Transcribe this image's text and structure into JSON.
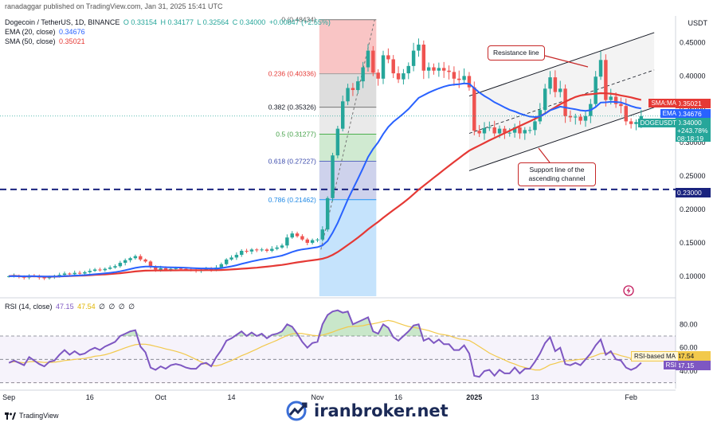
{
  "header": {
    "published_by": "ranadaggar published on TradingView.com, Jan 31, 2025 15:41 UTC",
    "symbol": "Dogecoin / TetherUS, 1D, BINANCE",
    "ohlc": {
      "o": "O 0.33154",
      "h": "H 0.34177",
      "l": "L 0.32564",
      "c": "C 0.34000",
      "chg": "+0.00847 (+2.55%)"
    },
    "ema_label": "EMA (20, close)",
    "ema_value": "0.34676",
    "sma_label": "SMA (50, close)",
    "sma_value": "0.35021",
    "currency": "USDT"
  },
  "colors": {
    "up": "#26a69a",
    "down": "#ef5350",
    "ema": "#2962ff",
    "sma": "#e53935",
    "rsi": "#7e57c2",
    "rsi_ma": "#f2c94c",
    "dash_line": "#1a237e"
  },
  "chart_data": [
    {
      "type": "candlestick",
      "title": "Dogecoin / TetherUS, 1D, BINANCE",
      "ylim": [
        0.07,
        0.49
      ],
      "y_ticks": [
        "0.45000",
        "0.40000",
        "0.35000",
        "0.30000",
        "0.25000",
        "0.20000",
        "0.15000",
        "0.10000"
      ],
      "y_tick_values": [
        0.45,
        0.4,
        0.35,
        0.3,
        0.25,
        0.2,
        0.15,
        0.1
      ],
      "x_ticks": [
        "Sep",
        "16",
        "Oct",
        "14",
        "Nov",
        "16",
        "2025",
        "13",
        "Feb"
      ],
      "x_tick_days": [
        0,
        16,
        30,
        44,
        61,
        77,
        92,
        104,
        123
      ],
      "days": 126,
      "close_prices": [
        0.1,
        0.101,
        0.099,
        0.098,
        0.101,
        0.1,
        0.098,
        0.097,
        0.099,
        0.1,
        0.102,
        0.104,
        0.103,
        0.105,
        0.104,
        0.106,
        0.108,
        0.11,
        0.109,
        0.111,
        0.113,
        0.115,
        0.12,
        0.124,
        0.127,
        0.13,
        0.125,
        0.122,
        0.114,
        0.11,
        0.112,
        0.11,
        0.111,
        0.112,
        0.111,
        0.11,
        0.109,
        0.108,
        0.11,
        0.111,
        0.109,
        0.113,
        0.118,
        0.125,
        0.128,
        0.132,
        0.138,
        0.137,
        0.14,
        0.139,
        0.14,
        0.138,
        0.141,
        0.143,
        0.146,
        0.158,
        0.164,
        0.16,
        0.155,
        0.15,
        0.154,
        0.155,
        0.17,
        0.217,
        0.281,
        0.321,
        0.362,
        0.382,
        0.379,
        0.392,
        0.413,
        0.438,
        0.405,
        0.396,
        0.431,
        0.425,
        0.404,
        0.395,
        0.404,
        0.415,
        0.438,
        0.447,
        0.408,
        0.413,
        0.408,
        0.412,
        0.408,
        0.406,
        0.396,
        0.394,
        0.4,
        0.383,
        0.318,
        0.314,
        0.322,
        0.323,
        0.314,
        0.321,
        0.315,
        0.315,
        0.323,
        0.314,
        0.319,
        0.319,
        0.332,
        0.349,
        0.381,
        0.398,
        0.376,
        0.381,
        0.34,
        0.338,
        0.339,
        0.333,
        0.34,
        0.358,
        0.399,
        0.424,
        0.364,
        0.369,
        0.358,
        0.355,
        0.332,
        0.328,
        0.331,
        0.34
      ],
      "ema20_last": 0.34676,
      "sma50_last": 0.35021,
      "last_price": "0.34000",
      "last_change": "+243.78%",
      "countdown": "08:18:19",
      "horizontal_level": 0.23,
      "horizontal_level_label": "0.23000",
      "fib_levels": [
        {
          "label": "0 (0.48434)",
          "value": 0.48434
        },
        {
          "label": "0.236 (0.40336)",
          "value": 0.40336
        },
        {
          "label": "0.382 (0.35326)",
          "value": 0.35326
        },
        {
          "label": "0.5 (0.31277)",
          "value": 0.31277
        },
        {
          "label": "0.618 (0.27227)",
          "value": 0.27227
        },
        {
          "label": "0.786 (0.21462)",
          "value": 0.21462
        }
      ],
      "tags": {
        "sma": "SMA:MA",
        "sma_val": "0.35021",
        "ema": "EMA",
        "ema_val": "0.34676",
        "sym": "DOGEUSDT",
        "sym_val": "0.34000",
        "level": "0.23000"
      },
      "annotations": {
        "resistance": "Resistance line",
        "support": "Support line of the ascending channel"
      }
    },
    {
      "type": "line",
      "title": "RSI (14, close)",
      "label_values": [
        "47.15",
        "47.54",
        "∅",
        "∅",
        "∅",
        "∅"
      ],
      "ylim": [
        25,
        100
      ],
      "y_ticks": [
        "80.00",
        "60.00",
        "40.00"
      ],
      "y_tick_values": [
        80,
        60,
        40
      ],
      "bands": [
        70,
        50,
        30
      ],
      "rsi_values": [
        47,
        49,
        47,
        45,
        52,
        49,
        46,
        44,
        48,
        49,
        54,
        58,
        54,
        57,
        54,
        55,
        58,
        60,
        58,
        61,
        63,
        65,
        70,
        72,
        74,
        75,
        61,
        56,
        43,
        41,
        44,
        42,
        45,
        46,
        45,
        43,
        42,
        42,
        46,
        47,
        44,
        52,
        58,
        66,
        68,
        71,
        74,
        70,
        73,
        70,
        72,
        68,
        71,
        72,
        74,
        80,
        78,
        72,
        65,
        60,
        64,
        65,
        80,
        88,
        91,
        92,
        90,
        91,
        80,
        82,
        84,
        86,
        74,
        72,
        80,
        77,
        69,
        66,
        70,
        74,
        79,
        80,
        66,
        68,
        64,
        67,
        63,
        63,
        58,
        58,
        62,
        55,
        36,
        35,
        40,
        41,
        36,
        41,
        38,
        38,
        43,
        38,
        42,
        42,
        48,
        55,
        64,
        69,
        57,
        60,
        46,
        45,
        47,
        45,
        50,
        55,
        62,
        67,
        54,
        57,
        50,
        49,
        43,
        41,
        43,
        47
      ],
      "rsi_ma_label": "RSI-based MA",
      "rsi_ma_value": "47.54",
      "rsi_label": "RSI",
      "rsi_value": "47.15"
    }
  ],
  "footer": {
    "tv_brand": "TradingView",
    "watermark": "iranbroker.net"
  }
}
